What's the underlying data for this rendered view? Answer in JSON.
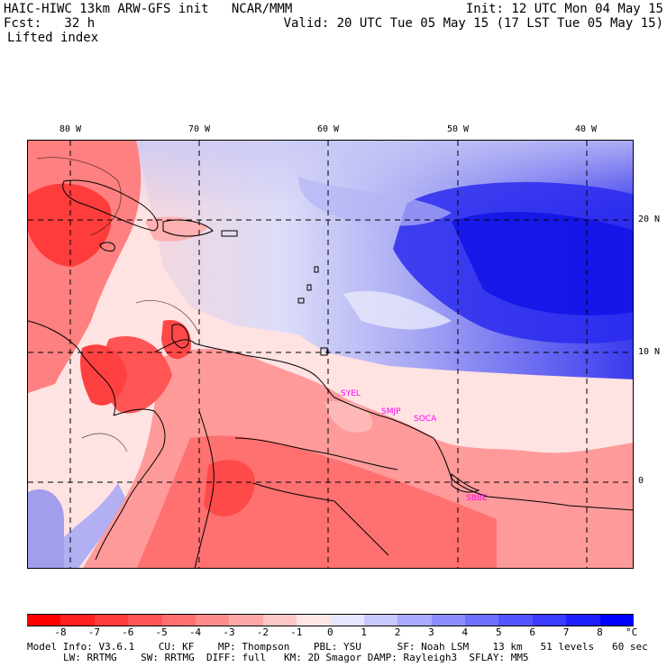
{
  "header": {
    "title_left": "HAIC-HIWC 13km ARW-GFS init   NCAR/MMM",
    "init": "Init: 12 UTC Mon 04 May 15",
    "fcst": "Fcst:   32 h",
    "valid": "Valid: 20 UTC Tue 05 May 15 (17 LST Tue 05 May 15)",
    "field": "Lifted index"
  },
  "map": {
    "longitude_labels": [
      "80 W",
      "70 W",
      "60 W",
      "50 W",
      "40 W"
    ],
    "latitude_labels": [
      "20 N",
      "10 N",
      "0"
    ],
    "stations": [
      "SYEL",
      "SMJP",
      "SOCA",
      "SBBE"
    ]
  },
  "colorbar": {
    "unit": "°C",
    "labels": [
      "-8",
      "-7",
      "-6",
      "-5",
      "-4",
      "-3",
      "-2",
      "-1",
      "0",
      "1",
      "2",
      "3",
      "4",
      "5",
      "6",
      "7",
      "8"
    ],
    "colors": [
      "#ff0000",
      "#ff2020",
      "#ff3c3c",
      "#ff5555",
      "#ff6f6f",
      "#ff8c8c",
      "#ffa8a8",
      "#ffc8c8",
      "#ffe6e6",
      "#e6e6ff",
      "#c8c8ff",
      "#aaaaff",
      "#8c8cff",
      "#7070ff",
      "#5555ff",
      "#3c3cff",
      "#2020ff",
      "#0000ff"
    ]
  },
  "footer": {
    "line1": "Model Info: V3.6.1    CU: KF    MP: Thompson    PBL: YSU      SF: Noah LSM    13 km   51 levels   60 sec",
    "line2": "LW: RRTMG    SW: RRTMG  DIFF: full   KM: 2D Smagor DAMP: Rayleigh3  SFLAY: MM5"
  }
}
